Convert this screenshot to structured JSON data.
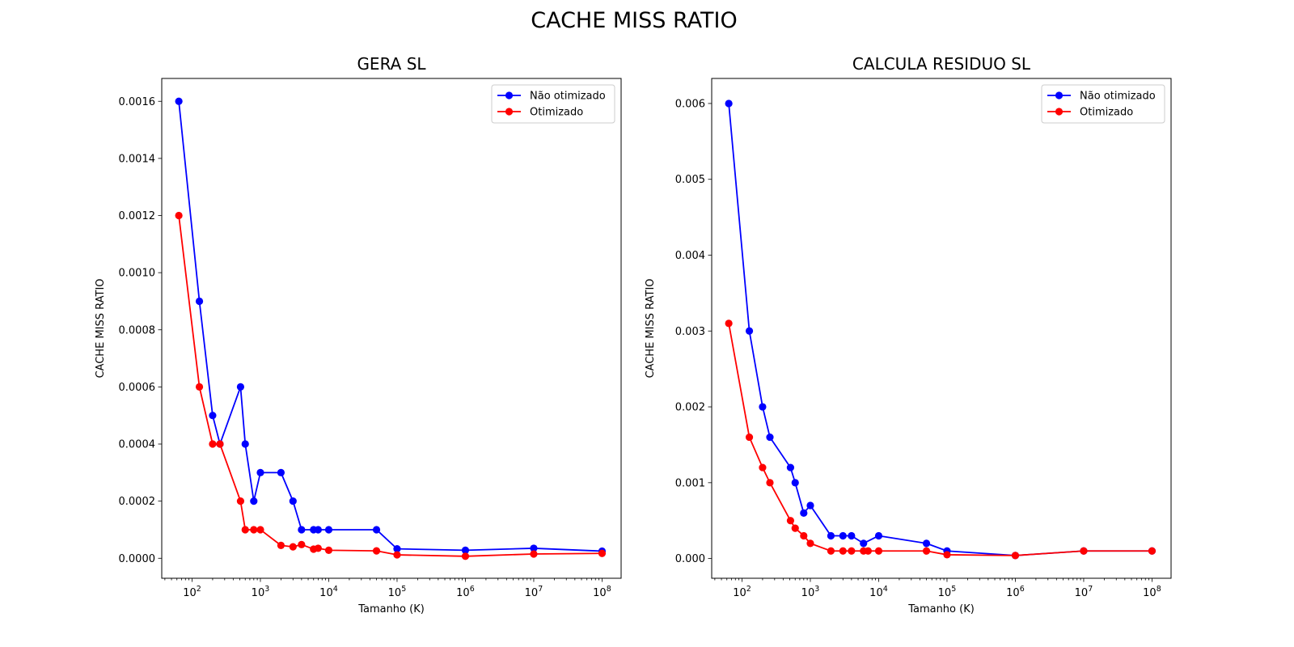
{
  "suptitle": "CACHE MISS RATIO",
  "colors": {
    "nao_otimizado": "#0000ff",
    "otimizado": "#ff0000",
    "axis": "#000000"
  },
  "chart_data": [
    {
      "type": "line",
      "title": "GERA SL",
      "xlabel": "Tamanho (K)",
      "ylabel": "CACHE MISS RATIO",
      "xscale": "log",
      "xlim": [
        36,
        190000000
      ],
      "ylim": [
        -7e-05,
        0.00168
      ],
      "yticks": [
        0,
        0.0002,
        0.0004,
        0.0006,
        0.0008,
        0.001,
        0.0012,
        0.0014,
        0.0016
      ],
      "ytick_labels": [
        "0.0000",
        "0.0002",
        "0.0004",
        "0.0006",
        "0.0008",
        "0.0010",
        "0.0012",
        "0.0014",
        "0.0016"
      ],
      "xticks": [
        100,
        1000,
        10000,
        100000,
        1000000,
        10000000,
        100000000
      ],
      "xtick_exponents": [
        "2",
        "3",
        "4",
        "5",
        "6",
        "7",
        "8"
      ],
      "xtick_base": "10",
      "grid": false,
      "legend": "top-right",
      "series": [
        {
          "name": "Não otimizado",
          "color": "#0000ff",
          "x": [
            64,
            128,
            200,
            256,
            512,
            600,
            800,
            1000,
            2000,
            3000,
            4000,
            6000,
            7000,
            10000,
            50000,
            100000,
            1000000,
            10000000,
            100000000
          ],
          "y": [
            0.0016,
            0.0009,
            0.0005,
            0.0004,
            0.0006,
            0.0004,
            0.0002,
            0.0003,
            0.0003,
            0.0002,
            0.0001,
            0.0001,
            0.0001,
            0.0001,
            0.0001,
            3.3e-05,
            2.8e-05,
            3.5e-05,
            2.5e-05
          ]
        },
        {
          "name": "Otimizado",
          "color": "#ff0000",
          "x": [
            64,
            128,
            200,
            256,
            512,
            600,
            800,
            1000,
            2000,
            3000,
            4000,
            6000,
            7000,
            10000,
            50000,
            100000,
            1000000,
            10000000,
            100000000
          ],
          "y": [
            0.0012,
            0.0006,
            0.0004,
            0.0004,
            0.0002,
            0.0001,
            0.0001,
            0.0001,
            4.5e-05,
            4e-05,
            4.8e-05,
            3.2e-05,
            3.5e-05,
            2.8e-05,
            2.6e-05,
            1.2e-05,
            7e-06,
            1.5e-05,
            1.7e-05
          ]
        }
      ]
    },
    {
      "type": "line",
      "title": "CALCULA RESIDUO SL",
      "xlabel": "Tamanho (K)",
      "ylabel": "CACHE MISS RATIO",
      "xscale": "log",
      "xlim": [
        36,
        190000000
      ],
      "ylim": [
        -0.00026,
        0.00633
      ],
      "yticks": [
        0,
        0.001,
        0.002,
        0.003,
        0.004,
        0.005,
        0.006
      ],
      "ytick_labels": [
        "0.000",
        "0.001",
        "0.002",
        "0.003",
        "0.004",
        "0.005",
        "0.006"
      ],
      "xticks": [
        100,
        1000,
        10000,
        100000,
        1000000,
        10000000,
        100000000
      ],
      "xtick_exponents": [
        "2",
        "3",
        "4",
        "5",
        "6",
        "7",
        "8"
      ],
      "xtick_base": "10",
      "grid": false,
      "legend": "top-right",
      "series": [
        {
          "name": "Não otimizado",
          "color": "#0000ff",
          "x": [
            64,
            128,
            200,
            256,
            512,
            600,
            800,
            1000,
            2000,
            3000,
            4000,
            6000,
            10000,
            50000,
            100000,
            1000000,
            10000000,
            100000000
          ],
          "y": [
            0.006,
            0.003,
            0.002,
            0.0016,
            0.0012,
            0.001,
            0.0006,
            0.0007,
            0.0003,
            0.0003,
            0.0003,
            0.0002,
            0.0003,
            0.0002,
            0.0001,
            4e-05,
            0.0001,
            0.0001
          ]
        },
        {
          "name": "Otimizado",
          "color": "#ff0000",
          "x": [
            64,
            128,
            200,
            256,
            512,
            600,
            800,
            1000,
            2000,
            3000,
            4000,
            6000,
            7000,
            10000,
            50000,
            100000,
            1000000,
            10000000,
            100000000
          ],
          "y": [
            0.0031,
            0.0016,
            0.0012,
            0.001,
            0.0005,
            0.0004,
            0.0003,
            0.0002,
            0.0001,
            0.0001,
            0.0001,
            0.0001,
            0.0001,
            0.0001,
            0.0001,
            5e-05,
            4e-05,
            0.0001,
            0.0001
          ]
        }
      ]
    }
  ]
}
